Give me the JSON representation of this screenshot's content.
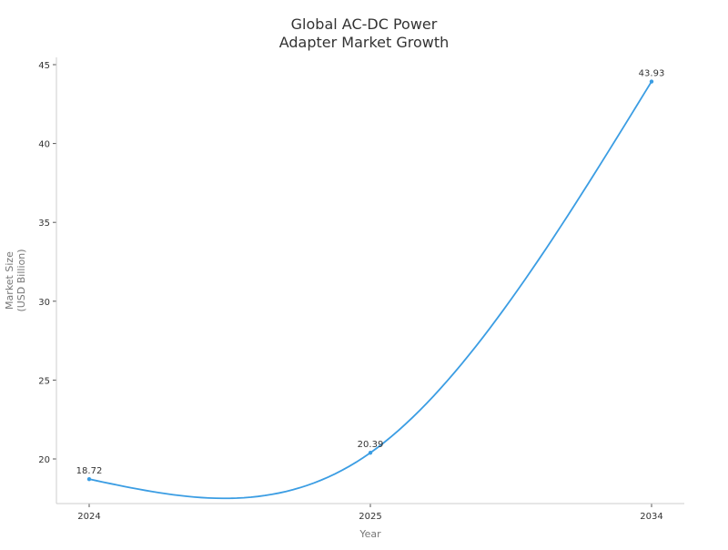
{
  "chart_data": {
    "type": "line",
    "title": [
      "Global AC-DC Power",
      "Adapter Market Growth"
    ],
    "xlabel": "Year",
    "ylabel": [
      "Market Size",
      "(USD Billion)"
    ],
    "categories": [
      "2024",
      "2025",
      "2034"
    ],
    "values": [
      18.72,
      20.39,
      43.93
    ],
    "data_labels": [
      "18.72",
      "20.39",
      "43.93"
    ],
    "yticks": [
      20,
      25,
      30,
      35,
      40,
      45
    ],
    "ylim": [
      17.2,
      45.4
    ],
    "grid": false,
    "line_color": "#3b9de3",
    "smooth": true
  }
}
